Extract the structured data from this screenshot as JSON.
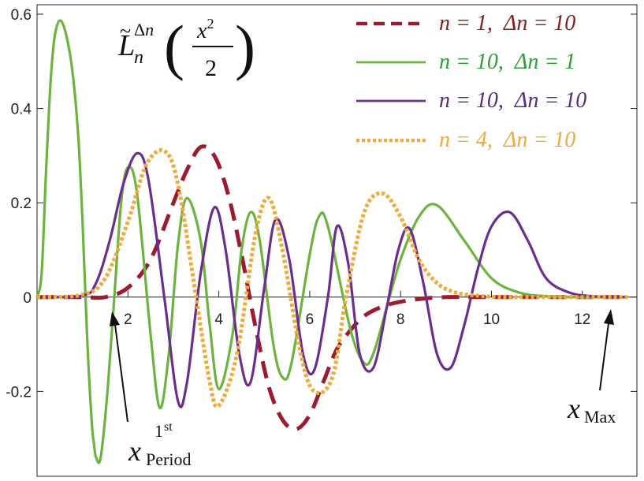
{
  "chart_data": {
    "type": "line",
    "title": "L̃ₙ^Δn (x²/2)",
    "xlim": [
      0,
      13.2
    ],
    "ylim": [
      -0.38,
      0.62
    ],
    "xticks": [
      2,
      4,
      6,
      8,
      10,
      12
    ],
    "yticks": [
      -0.2,
      0,
      0.2,
      0.4,
      0.6
    ],
    "xtick_labels": [
      "2",
      "4",
      "6",
      "8",
      "10",
      "12"
    ],
    "ytick_labels": [
      "-0.2",
      "0",
      "0.2",
      "0.4",
      "0.6"
    ],
    "grid": false,
    "legend_position": "top-right",
    "series": [
      {
        "name": "n = 1,  Δn = 10",
        "color": "#9b1b30",
        "style": "dashed",
        "x": [
          0,
          1.0,
          1.5,
          2.0,
          2.5,
          3.0,
          3.3,
          3.6,
          3.9,
          4.2,
          4.5,
          4.8,
          5.1,
          5.4,
          5.7,
          6.0,
          6.3,
          6.6,
          6.9,
          7.2,
          7.6,
          8.0,
          8.5,
          9.0,
          9.5,
          10.0,
          11.0,
          12.0,
          13.0
        ],
        "y": [
          0,
          0,
          0,
          0.02,
          0.08,
          0.2,
          0.27,
          0.318,
          0.3,
          0.22,
          0.09,
          -0.06,
          -0.19,
          -0.26,
          -0.28,
          -0.25,
          -0.18,
          -0.11,
          -0.07,
          -0.04,
          -0.02,
          -0.01,
          -0.003,
          0,
          0,
          0,
          0,
          0,
          0
        ]
      },
      {
        "name": "n = 10,  Δn = 1",
        "color": "#6db33f",
        "style": "solid",
        "x": [
          0,
          0.1,
          0.2,
          0.3,
          0.4,
          0.55,
          0.75,
          0.9,
          1.0,
          1.1,
          1.2,
          1.25,
          1.3,
          1.4,
          1.55,
          1.7,
          1.85,
          2.0,
          2.2,
          2.5,
          2.7,
          2.9,
          3.1,
          3.3,
          3.6,
          3.8,
          4.0,
          4.3,
          4.5,
          4.7,
          4.9,
          5.2,
          5.4,
          5.6,
          6.0,
          6.2,
          6.4,
          6.9,
          7.2,
          7.4,
          7.7,
          8.0,
          8.4,
          8.8,
          9.4,
          10.0,
          10.6,
          11.2,
          12.0,
          13.0
        ],
        "y": [
          0,
          0.05,
          0.27,
          0.46,
          0.56,
          0.583,
          0.5,
          0.35,
          0.16,
          -0.08,
          -0.26,
          -0.31,
          -0.34,
          -0.34,
          -0.2,
          0.0,
          0.2,
          0.275,
          0.22,
          -0.08,
          -0.235,
          -0.12,
          0.11,
          0.21,
          0.12,
          -0.06,
          -0.195,
          -0.08,
          0.1,
          0.18,
          0.12,
          -0.1,
          -0.17,
          -0.14,
          0.09,
          0.17,
          0.15,
          -0.07,
          -0.14,
          -0.12,
          -0.02,
          0.08,
          0.17,
          0.195,
          0.12,
          0.04,
          0.01,
          0.002,
          0,
          0
        ]
      },
      {
        "name": "n = 10,  Δn = 10",
        "color": "#6b2e8f",
        "style": "solid",
        "x": [
          0,
          1.0,
          1.3,
          1.6,
          1.9,
          2.2,
          2.45,
          2.8,
          3.1,
          3.3,
          3.6,
          3.9,
          4.15,
          4.45,
          4.7,
          5.0,
          5.25,
          5.55,
          5.85,
          6.1,
          6.4,
          6.6,
          6.85,
          7.1,
          7.4,
          7.7,
          7.95,
          8.2,
          8.5,
          8.8,
          9.1,
          9.4,
          9.7,
          10.0,
          10.4,
          10.8,
          11.2,
          11.7,
          12.2,
          13.0
        ],
        "y": [
          0,
          0.003,
          0.03,
          0.12,
          0.24,
          0.305,
          0.25,
          0.0,
          -0.22,
          -0.18,
          0.05,
          0.19,
          0.1,
          -0.12,
          -0.18,
          0.02,
          0.165,
          0.08,
          -0.12,
          -0.155,
          0.0,
          0.15,
          0.07,
          -0.12,
          -0.15,
          -0.02,
          0.1,
          0.145,
          0.03,
          -0.12,
          -0.15,
          -0.06,
          0.06,
          0.15,
          0.18,
          0.12,
          0.04,
          0.01,
          0.002,
          0
        ]
      },
      {
        "name": "n = 4,  Δn = 10",
        "color": "#f2a93b",
        "style": "dotted",
        "x": [
          0,
          1.0,
          1.5,
          2.0,
          2.4,
          2.8,
          3.1,
          3.5,
          3.8,
          4.0,
          4.4,
          4.8,
          5.1,
          5.4,
          5.8,
          6.1,
          6.5,
          6.8,
          7.2,
          7.6,
          8.0,
          8.4,
          8.8,
          9.2,
          9.7,
          10.2,
          10.8,
          11.5,
          12.2,
          13.0
        ],
        "y": [
          0,
          0.005,
          0.04,
          0.16,
          0.28,
          0.31,
          0.24,
          0.0,
          -0.18,
          -0.23,
          -0.12,
          0.13,
          0.21,
          0.1,
          -0.12,
          -0.2,
          -0.17,
          0.0,
          0.18,
          0.22,
          0.17,
          0.08,
          0.03,
          0.01,
          0.003,
          0,
          0,
          0,
          0,
          0
        ]
      }
    ],
    "annotations": [
      {
        "id": "x_first_period",
        "text": "x",
        "sub": "Period",
        "sup": "1st",
        "x_point": 1.6,
        "y_point": 0
      },
      {
        "id": "x_max",
        "text": "x",
        "sub": "Max",
        "x_point": 12.7,
        "y_point": 0
      }
    ],
    "legend_entries": [
      {
        "n_text": "n = 1,",
        "dn_text": "Δn = 10",
        "color": "#8b1a1a"
      },
      {
        "n_text": "n = 10,",
        "dn_text": "Δn = 1",
        "color": "#2e9e35"
      },
      {
        "n_text": "n = 10,",
        "dn_text": "Δn = 10",
        "color": "#5b2a86"
      },
      {
        "n_text": "n = 4,",
        "dn_text": "Δn = 10",
        "color": "#f2a93b"
      }
    ]
  }
}
